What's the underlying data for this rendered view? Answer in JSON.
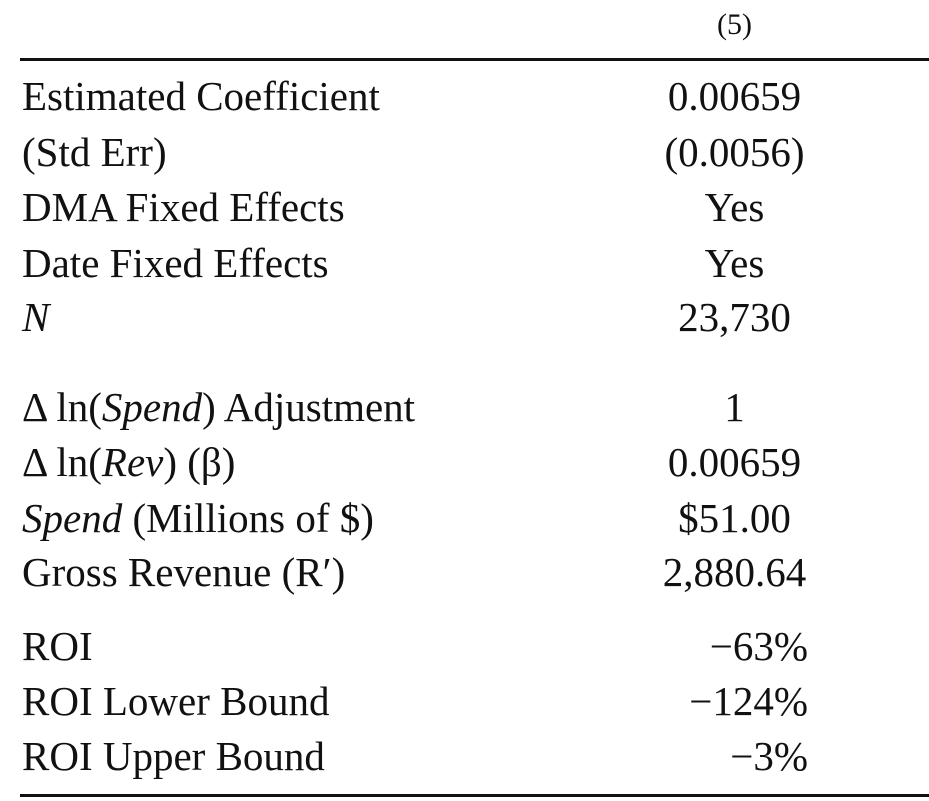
{
  "table": {
    "column_header": "(5)",
    "rows_top": [
      {
        "label": "Estimated Coefficient",
        "value": "0.00659"
      },
      {
        "label": "(Std Err)",
        "value": "(0.0056)"
      },
      {
        "label": "DMA Fixed Effects",
        "value": "Yes"
      },
      {
        "label": "Date Fixed Effects",
        "value": "Yes"
      },
      {
        "label": "N",
        "value": "23,730"
      }
    ],
    "spend_adjustment": {
      "delta": "Δ",
      "ln": " ln(",
      "var": "Spend",
      "rest": ") Adjustment",
      "value": "1"
    },
    "rev_beta": {
      "delta": "Δ",
      "ln": " ln(",
      "var": "Rev",
      "rest": ") (β)",
      "value": "0.00659"
    },
    "spend_millions": {
      "var": "Spend",
      "rest": " (Millions of $)",
      "value": "$51.00"
    },
    "gross_revenue": {
      "label": "Gross Revenue (R′)",
      "value": "2,880.64"
    },
    "roi": {
      "label": "ROI",
      "value": "−63%"
    },
    "roi_lower": {
      "label": "ROI Lower Bound",
      "value": "−124%"
    },
    "roi_upper": {
      "label": "ROI Upper Bound",
      "value": "−3%"
    }
  }
}
